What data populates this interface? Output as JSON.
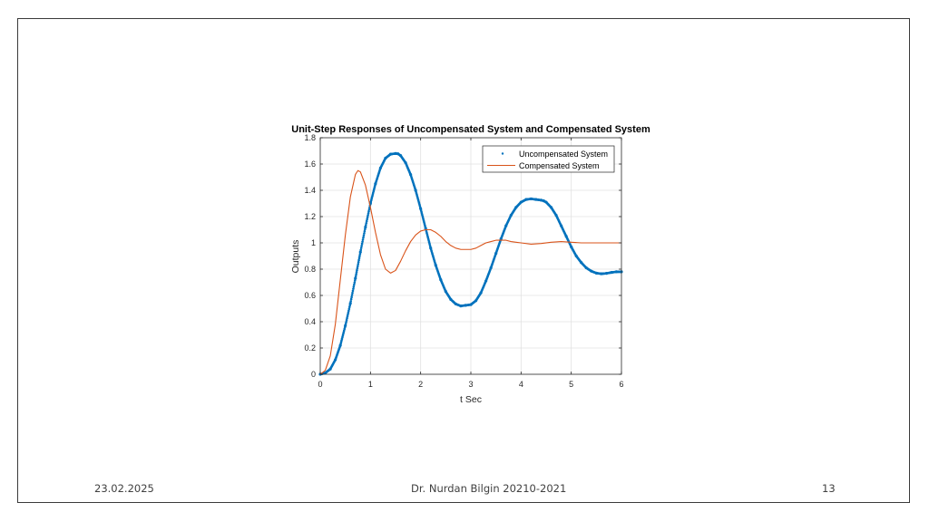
{
  "footer": {
    "date": "23.02.2025",
    "author": "Dr. Nurdan Bilgin 20210-2021",
    "page": "13"
  },
  "chart_data": {
    "type": "line",
    "title": "Unit-Step Responses of Uncompensated System and Compensated System",
    "xlabel": "t Sec",
    "ylabel": "Outputs",
    "xlim": [
      0,
      6
    ],
    "ylim": [
      0,
      1.8
    ],
    "xticks": [
      "0",
      "1",
      "2",
      "3",
      "4",
      "5",
      "6"
    ],
    "yticks": [
      "0",
      "0.2",
      "0.4",
      "0.6",
      "0.8",
      "1",
      "1.2",
      "1.4",
      "1.6",
      "1.8"
    ],
    "grid": true,
    "legend_position": "top-right",
    "series": [
      {
        "name": "Uncompensated System",
        "style": "dots",
        "color": "#0072BD",
        "x": [
          0,
          0.1,
          0.2,
          0.3,
          0.4,
          0.5,
          0.6,
          0.7,
          0.8,
          0.9,
          1.0,
          1.1,
          1.2,
          1.3,
          1.4,
          1.5,
          1.55,
          1.6,
          1.7,
          1.8,
          1.9,
          2.0,
          2.1,
          2.2,
          2.3,
          2.4,
          2.5,
          2.6,
          2.7,
          2.8,
          2.9,
          3.0,
          3.1,
          3.2,
          3.3,
          3.4,
          3.5,
          3.6,
          3.7,
          3.8,
          3.9,
          4.0,
          4.1,
          4.2,
          4.3,
          4.4,
          4.45,
          4.5,
          4.6,
          4.7,
          4.8,
          4.9,
          5.0,
          5.1,
          5.2,
          5.3,
          5.4,
          5.5,
          5.6,
          5.7,
          5.8,
          5.9,
          6.0
        ],
        "y": [
          0,
          0.01,
          0.04,
          0.11,
          0.22,
          0.37,
          0.54,
          0.73,
          0.93,
          1.12,
          1.3,
          1.45,
          1.57,
          1.645,
          1.675,
          1.68,
          1.678,
          1.665,
          1.61,
          1.52,
          1.4,
          1.26,
          1.11,
          0.96,
          0.83,
          0.72,
          0.63,
          0.57,
          0.535,
          0.52,
          0.525,
          0.53,
          0.56,
          0.62,
          0.71,
          0.81,
          0.92,
          1.03,
          1.13,
          1.21,
          1.27,
          1.31,
          1.33,
          1.335,
          1.33,
          1.325,
          1.32,
          1.31,
          1.27,
          1.21,
          1.13,
          1.05,
          0.97,
          0.9,
          0.85,
          0.81,
          0.785,
          0.77,
          0.765,
          0.768,
          0.775,
          0.78,
          0.78
        ]
      },
      {
        "name": "Compensated System",
        "style": "line",
        "color": "#D95319",
        "x": [
          0,
          0.1,
          0.2,
          0.3,
          0.4,
          0.5,
          0.6,
          0.7,
          0.75,
          0.8,
          0.9,
          1.0,
          1.1,
          1.2,
          1.3,
          1.4,
          1.5,
          1.6,
          1.7,
          1.8,
          1.9,
          2.0,
          2.1,
          2.2,
          2.3,
          2.4,
          2.5,
          2.6,
          2.7,
          2.8,
          2.9,
          3.0,
          3.1,
          3.2,
          3.3,
          3.4,
          3.5,
          3.6,
          3.7,
          3.8,
          3.9,
          4.0,
          4.2,
          4.4,
          4.6,
          4.8,
          5.0,
          5.2,
          5.4,
          5.6,
          5.8,
          6.0
        ],
        "y": [
          0,
          0.03,
          0.14,
          0.38,
          0.72,
          1.06,
          1.35,
          1.52,
          1.55,
          1.54,
          1.44,
          1.27,
          1.08,
          0.91,
          0.8,
          0.77,
          0.79,
          0.86,
          0.94,
          1.01,
          1.06,
          1.09,
          1.1,
          1.1,
          1.08,
          1.05,
          1.01,
          0.98,
          0.96,
          0.95,
          0.95,
          0.95,
          0.96,
          0.98,
          1.0,
          1.01,
          1.02,
          1.02,
          1.02,
          1.01,
          1.005,
          1.0,
          0.99,
          0.995,
          1.005,
          1.01,
          1.005,
          1.0,
          1.0,
          1.0,
          1.0,
          1.0
        ]
      }
    ]
  }
}
